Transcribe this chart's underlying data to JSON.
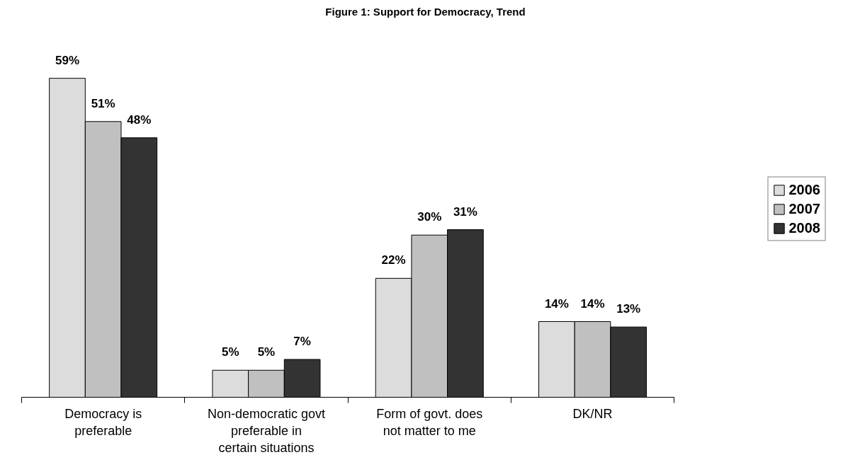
{
  "chart_data": {
    "type": "bar",
    "title": "Figure 1: Support for Democracy, Trend",
    "categories": [
      "Democracy is preferable",
      "Non-democratic govt preferable in certain situations",
      "Form of govt. does not matter to me",
      "DK/NR"
    ],
    "series": [
      {
        "name": "2006",
        "color": "#dcdcdc",
        "values": [
          59,
          5,
          22,
          14
        ],
        "value_labels": [
          "59%",
          "5%",
          "22%",
          "14%"
        ]
      },
      {
        "name": "2007",
        "color": "#c0c0c0",
        "values": [
          51,
          5,
          30,
          14
        ],
        "value_labels": [
          "51%",
          "5%",
          "30%",
          "14%"
        ]
      },
      {
        "name": "2008",
        "color": "#333333",
        "values": [
          48,
          7,
          31,
          13
        ],
        "value_labels": [
          "48%",
          "7%",
          "31%",
          "13%"
        ]
      }
    ],
    "legend": "right",
    "grid": false
  }
}
